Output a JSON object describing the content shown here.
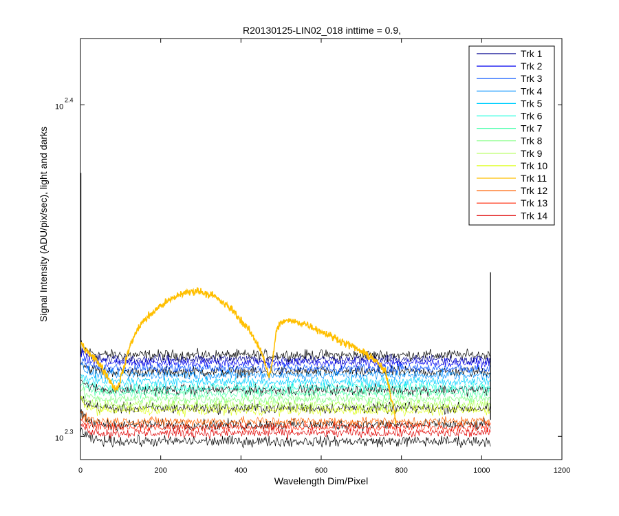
{
  "chart_data": {
    "type": "line",
    "title": "R20130125-LIN02_018 inttime = 0.9,",
    "xlabel": "Wavelength Dim/Pixel",
    "ylabel": "Signal Intensity (ADU/pix/sec), light and darks",
    "xlim": [
      0,
      1200
    ],
    "ylog": true,
    "ylim_log10": [
      2.293,
      2.42
    ],
    "x_ticks": [
      0,
      200,
      400,
      600,
      800,
      1000,
      1200
    ],
    "y_ticks": [
      {
        "base": "10",
        "exp": "2.3",
        "value_log10": 2.3
      },
      {
        "base": "10",
        "exp": "2.4",
        "value_log10": 2.4
      }
    ],
    "grid": false,
    "legend_position": "top-right",
    "n_points": 1024,
    "series": [
      {
        "name": "Trk 1",
        "color": "#00008f",
        "level_log10": 2.3232
      },
      {
        "name": "Trk 2",
        "color": "#0000ef",
        "level_log10": 2.3222
      },
      {
        "name": "Trk 3",
        "color": "#0050ff",
        "level_log10": 2.3205
      },
      {
        "name": "Trk 4",
        "color": "#0090ff",
        "level_log10": 2.3185
      },
      {
        "name": "Trk 5",
        "color": "#00d0ff",
        "level_log10": 2.3165
      },
      {
        "name": "Trk 6",
        "color": "#20ffdf",
        "level_log10": 2.3148
      },
      {
        "name": "Trk 7",
        "color": "#50ffaf",
        "level_log10": 2.313
      },
      {
        "name": "Trk 8",
        "color": "#80ff80",
        "level_log10": 2.3112
      },
      {
        "name": "Trk 9",
        "color": "#afff50",
        "level_log10": 2.3095
      },
      {
        "name": "Trk 10",
        "color": "#dfff20",
        "level_log10": 2.3078
      },
      {
        "name": "Trk 11",
        "color": "#ffbf00",
        "level_log10": 2.3
      },
      {
        "name": "Trk 12",
        "color": "#ff6000",
        "level_log10": 2.3045
      },
      {
        "name": "Trk 13",
        "color": "#ff2000",
        "level_log10": 2.3028
      },
      {
        "name": "Trk 14",
        "color": "#df0000",
        "level_log10": 2.301
      }
    ],
    "dark_levels_log10": [
      2.3245,
      2.3195,
      2.314,
      2.3085,
      2.3035,
      2.2985
    ],
    "highlight_series": {
      "name": "Trk 11",
      "points": [
        [
          0,
          2.328
        ],
        [
          20,
          2.3255
        ],
        [
          50,
          2.3215
        ],
        [
          80,
          2.3155
        ],
        [
          90,
          2.314
        ],
        [
          100,
          2.3175
        ],
        [
          110,
          2.3215
        ],
        [
          125,
          2.328
        ],
        [
          150,
          2.334
        ],
        [
          200,
          2.3395
        ],
        [
          250,
          2.343
        ],
        [
          290,
          2.344
        ],
        [
          330,
          2.3425
        ],
        [
          380,
          2.338
        ],
        [
          420,
          2.332
        ],
        [
          450,
          2.326
        ],
        [
          462,
          2.3215
        ],
        [
          470,
          2.3175
        ],
        [
          478,
          2.3225
        ],
        [
          490,
          2.333
        ],
        [
          510,
          2.335
        ],
        [
          560,
          2.334
        ],
        [
          620,
          2.3305
        ],
        [
          680,
          2.327
        ],
        [
          730,
          2.3235
        ],
        [
          760,
          2.3195
        ],
        [
          770,
          2.314
        ],
        [
          780,
          2.309
        ],
        [
          786,
          2.3045
        ]
      ]
    }
  }
}
